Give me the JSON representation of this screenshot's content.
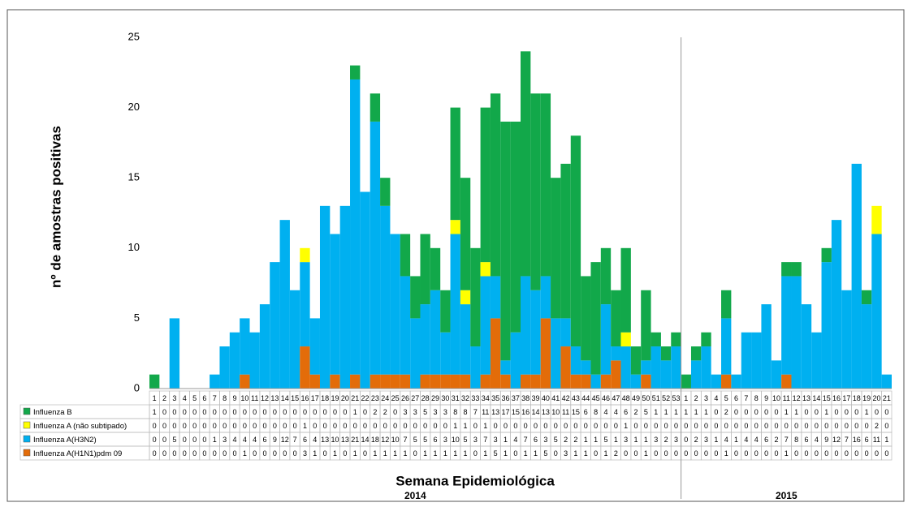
{
  "chart_data": {
    "type": "stacked_bar",
    "y_label": "nº de amostras positivas",
    "x_label": "Semana Epidemiológica",
    "year_labels": [
      "2014",
      "2015"
    ],
    "categories": [
      "1",
      "2",
      "3",
      "4",
      "5",
      "6",
      "7",
      "8",
      "9",
      "10",
      "11",
      "12",
      "13",
      "14",
      "15",
      "16",
      "17",
      "18",
      "19",
      "20",
      "21",
      "22",
      "23",
      "24",
      "25",
      "26",
      "27",
      "28",
      "29",
      "30",
      "31",
      "32",
      "33",
      "34",
      "35",
      "36",
      "37",
      "38",
      "39",
      "40",
      "41",
      "42",
      "43",
      "44",
      "45",
      "46",
      "47",
      "48",
      "49",
      "50",
      "51",
      "52",
      "53",
      "1",
      "2",
      "3",
      "4",
      "5",
      "6",
      "7",
      "8",
      "9",
      "10",
      "11",
      "12",
      "13",
      "14",
      "15",
      "16",
      "17",
      "18",
      "19",
      "20",
      "21"
    ],
    "ylim": [
      0,
      25
    ],
    "yticks": [
      0,
      5,
      10,
      15,
      20,
      25
    ],
    "series": [
      {
        "name": "Influenza B",
        "color": "#12a84a",
        "values": [
          1,
          0,
          0,
          0,
          0,
          0,
          0,
          0,
          0,
          0,
          0,
          0,
          0,
          0,
          0,
          0,
          0,
          0,
          0,
          0,
          1,
          0,
          2,
          2,
          0,
          3,
          3,
          5,
          3,
          3,
          8,
          8,
          7,
          11,
          13,
          17,
          15,
          16,
          14,
          13,
          10,
          11,
          15,
          6,
          8,
          4,
          4,
          6,
          2,
          5,
          1,
          1,
          1,
          1,
          1,
          1,
          0,
          2,
          0,
          0,
          0,
          0,
          0,
          1,
          1,
          0,
          0,
          1,
          0,
          0,
          0,
          1,
          0,
          0
        ]
      },
      {
        "name": "Influenza A (não subtipado)",
        "color": "#ffff00",
        "values": [
          0,
          0,
          0,
          0,
          0,
          0,
          0,
          0,
          0,
          0,
          0,
          0,
          0,
          0,
          0,
          1,
          0,
          0,
          0,
          0,
          0,
          0,
          0,
          0,
          0,
          0,
          0,
          0,
          0,
          0,
          1,
          1,
          0,
          1,
          0,
          0,
          0,
          0,
          0,
          0,
          0,
          0,
          0,
          0,
          0,
          0,
          0,
          1,
          0,
          0,
          0,
          0,
          0,
          0,
          0,
          0,
          0,
          0,
          0,
          0,
          0,
          0,
          0,
          0,
          0,
          0,
          0,
          0,
          0,
          0,
          0,
          0,
          2,
          0
        ]
      },
      {
        "name": "Influenza A(H3N2)",
        "color": "#00b0f0",
        "values": [
          0,
          0,
          5,
          0,
          0,
          0,
          1,
          3,
          4,
          4,
          4,
          6,
          9,
          12,
          7,
          6,
          4,
          13,
          10,
          13,
          21,
          14,
          18,
          12,
          10,
          7,
          5,
          5,
          6,
          3,
          10,
          5,
          3,
          7,
          3,
          1,
          4,
          7,
          6,
          3,
          5,
          2,
          2,
          1,
          1,
          5,
          1,
          3,
          1,
          1,
          3,
          2,
          3,
          0,
          2,
          3,
          1,
          4,
          1,
          4,
          4,
          6,
          2,
          7,
          8,
          6,
          4,
          9,
          12,
          7,
          16,
          6,
          11,
          1
        ]
      },
      {
        "name": "Influenza A(H1N1)pdm 09",
        "color": "#e36c09",
        "values": [
          0,
          0,
          0,
          0,
          0,
          0,
          0,
          0,
          0,
          1,
          0,
          0,
          0,
          0,
          0,
          3,
          1,
          0,
          1,
          0,
          1,
          0,
          1,
          1,
          1,
          1,
          0,
          1,
          1,
          1,
          1,
          1,
          0,
          1,
          5,
          1,
          0,
          1,
          1,
          5,
          0,
          3,
          1,
          1,
          0,
          1,
          2,
          0,
          0,
          1,
          0,
          0,
          0,
          0,
          0,
          0,
          0,
          1,
          0,
          0,
          0,
          0,
          0,
          1,
          0,
          0,
          0,
          0,
          0,
          0,
          0,
          0,
          0,
          0
        ]
      }
    ]
  }
}
